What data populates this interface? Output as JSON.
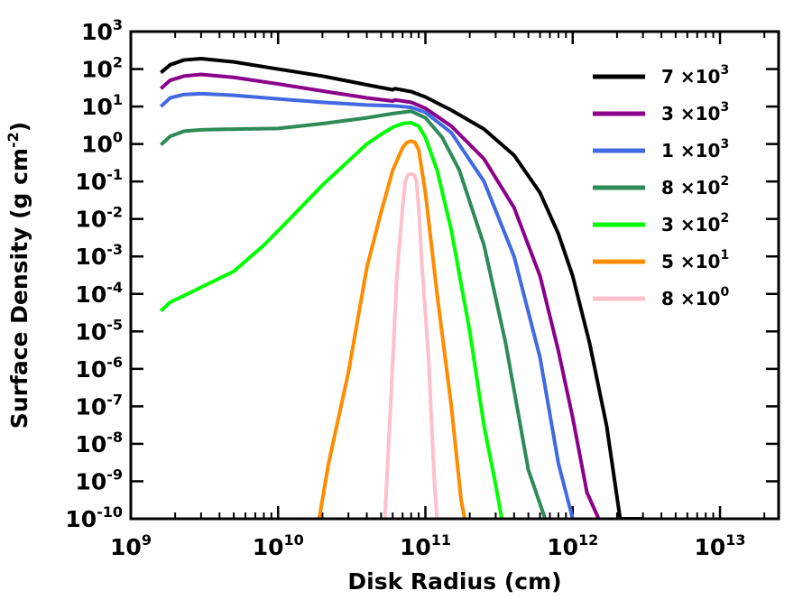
{
  "chart_data": {
    "type": "line",
    "xlabel": "Disk Radius (cm)",
    "ylabel_main": "Surface Density (g cm",
    "ylabel_exp": "-2",
    "ylabel_tail": ")",
    "xscale": "log",
    "yscale": "log",
    "xlim": [
      1000000000.0,
      25000000000000.0
    ],
    "ylim": [
      1e-10,
      1000.0
    ],
    "x_ticks": [
      {
        "base": "10",
        "exp": "9",
        "value": 1000000000.0
      },
      {
        "base": "10",
        "exp": "10",
        "value": 10000000000.0
      },
      {
        "base": "10",
        "exp": "11",
        "value": 100000000000.0
      },
      {
        "base": "10",
        "exp": "12",
        "value": 1000000000000.0
      },
      {
        "base": "10",
        "exp": "13",
        "value": 10000000000000.0
      }
    ],
    "y_ticks": [
      {
        "base": "10",
        "exp": "3",
        "value": 1000.0
      },
      {
        "base": "10",
        "exp": "2",
        "value": 100.0
      },
      {
        "base": "10",
        "exp": "1",
        "value": 10.0
      },
      {
        "base": "10",
        "exp": "0",
        "value": 1.0
      },
      {
        "base": "10",
        "exp": "-1",
        "value": 0.1
      },
      {
        "base": "10",
        "exp": "-2",
        "value": 0.01
      },
      {
        "base": "10",
        "exp": "-3",
        "value": 0.001
      },
      {
        "base": "10",
        "exp": "-4",
        "value": 0.0001
      },
      {
        "base": "10",
        "exp": "-5",
        "value": 1e-05
      },
      {
        "base": "10",
        "exp": "-6",
        "value": 1e-06
      },
      {
        "base": "10",
        "exp": "-7",
        "value": 1e-07
      },
      {
        "base": "10",
        "exp": "-8",
        "value": 1e-08
      },
      {
        "base": "10",
        "exp": "-9",
        "value": 1e-09
      },
      {
        "base": "10",
        "exp": "-10",
        "value": 1e-10
      }
    ],
    "legend_position": "top-right",
    "grid": false,
    "series": [
      {
        "name": "7 ×10",
        "exp": "3",
        "color": "#000000",
        "x": [
          1600000000.0,
          1850000000.0,
          2300000000.0,
          3000000000.0,
          5000000000.0,
          10000000000.0,
          20000000000.0,
          40000000000.0,
          60000000000.0,
          62000000000.0,
          80000000000.0,
          100000000000.0,
          150000000000.0,
          250000000000.0,
          400000000000.0,
          600000000000.0,
          800000000000.0,
          1000000000000.0,
          1300000000000.0,
          1700000000000.0,
          2100000000000.0,
          2500000000000.0,
          2800000000000.0,
          3000000000000.0
        ],
        "y": [
          80,
          130,
          175,
          190,
          155,
          100,
          65,
          38,
          28,
          30,
          25,
          18,
          8,
          2.5,
          0.5,
          0.05,
          0.004,
          0.0003,
          5e-06,
          3e-08,
          1e-10,
          1e-10,
          1e-10,
          1e-10
        ]
      },
      {
        "name": "3 ×10",
        "exp": "3",
        "color": "#8B008B",
        "x": [
          1600000000.0,
          1850000000.0,
          2300000000.0,
          3000000000.0,
          5000000000.0,
          10000000000.0,
          20000000000.0,
          40000000000.0,
          60000000000.0,
          62000000000.0,
          80000000000.0,
          100000000000.0,
          150000000000.0,
          250000000000.0,
          400000000000.0,
          600000000000.0,
          800000000000.0,
          1000000000000.0,
          1250000000000.0,
          1500000000000.0
        ],
        "y": [
          30,
          50,
          65,
          72,
          60,
          40,
          26,
          17,
          14,
          15,
          13,
          9,
          3,
          0.4,
          0.02,
          0.0003,
          3e-06,
          5e-08,
          5e-10,
          1e-10
        ]
      },
      {
        "name": "1 ×10",
        "exp": "3",
        "color": "#4169E1",
        "x": [
          1600000000.0,
          1850000000.0,
          2300000000.0,
          3000000000.0,
          5000000000.0,
          10000000000.0,
          20000000000.0,
          40000000000.0,
          60000000000.0,
          80000000000.0,
          100000000000.0,
          150000000000.0,
          250000000000.0,
          400000000000.0,
          600000000000.0,
          800000000000.0,
          1000000000000.0
        ],
        "y": [
          10,
          17,
          21,
          22,
          20,
          16,
          13,
          11,
          10.5,
          9.5,
          7,
          2,
          0.1,
          0.001,
          2e-06,
          3e-09,
          1e-10
        ]
      },
      {
        "name": "8 ×10",
        "exp": "2",
        "color": "#2E8B57",
        "x": [
          1600000000.0,
          1850000000.0,
          2300000000.0,
          3000000000.0,
          5000000000.0,
          10000000000.0,
          20000000000.0,
          40000000000.0,
          60000000000.0,
          80000000000.0,
          100000000000.0,
          130000000000.0,
          170000000000.0,
          250000000000.0,
          350000000000.0,
          500000000000.0,
          650000000000.0
        ],
        "y": [
          0.95,
          1.6,
          2.2,
          2.4,
          2.5,
          2.6,
          3.5,
          5,
          6.5,
          7.5,
          5,
          1.5,
          0.2,
          0.002,
          5e-06,
          2e-09,
          1e-10
        ]
      },
      {
        "name": "3 ×10",
        "exp": "2",
        "color": "#00FF00",
        "x": [
          1600000000.0,
          1850000000.0,
          2300000000.0,
          3000000000.0,
          5000000000.0,
          8000000000.0,
          12000000000.0,
          20000000000.0,
          30000000000.0,
          40000000000.0,
          50000000000.0,
          60000000000.0,
          70000000000.0,
          80000000000.0,
          90000000000.0,
          100000000000.0,
          120000000000.0,
          150000000000.0,
          200000000000.0,
          250000000000.0,
          300000000000.0,
          330000000000.0
        ],
        "y": [
          3.5e-05,
          6e-05,
          9e-05,
          0.00015,
          0.0004,
          0.002,
          0.01,
          0.08,
          0.35,
          1,
          1.8,
          2.8,
          3.5,
          3.7,
          3,
          1.5,
          0.2,
          0.005,
          1e-05,
          3e-08,
          8e-10,
          1e-10
        ]
      },
      {
        "name": "5 ×10",
        "exp": "1",
        "color": "#FF8C00",
        "x": [
          19000000000.0,
          22000000000.0,
          30000000000.0,
          40000000000.0,
          50000000000.0,
          60000000000.0,
          70000000000.0,
          75000000000.0,
          80000000000.0,
          85000000000.0,
          90000000000.0,
          100000000000.0,
          120000000000.0,
          150000000000.0,
          175000000000.0,
          185000000000.0
        ],
        "y": [
          1e-10,
          3e-09,
          8e-07,
          0.0005,
          0.015,
          0.2,
          0.8,
          1.1,
          1.2,
          1.1,
          0.7,
          0.05,
          0.0001,
          1e-07,
          3e-10,
          1e-10
        ]
      },
      {
        "name": "8 ×10",
        "exp": "0",
        "color": "#FFC0CB",
        "x": [
          53000000000.0,
          58000000000.0,
          64000000000.0,
          70000000000.0,
          73000000000.0,
          76000000000.0,
          80000000000.0,
          84000000000.0,
          87000000000.0,
          90000000000.0,
          95000000000.0,
          105000000000.0,
          115000000000.0,
          120000000000.0
        ],
        "y": [
          1e-10,
          1e-07,
          0.0003,
          0.02,
          0.1,
          0.15,
          0.16,
          0.15,
          0.1,
          0.02,
          0.0005,
          2e-06,
          1e-09,
          1e-10
        ]
      }
    ]
  }
}
